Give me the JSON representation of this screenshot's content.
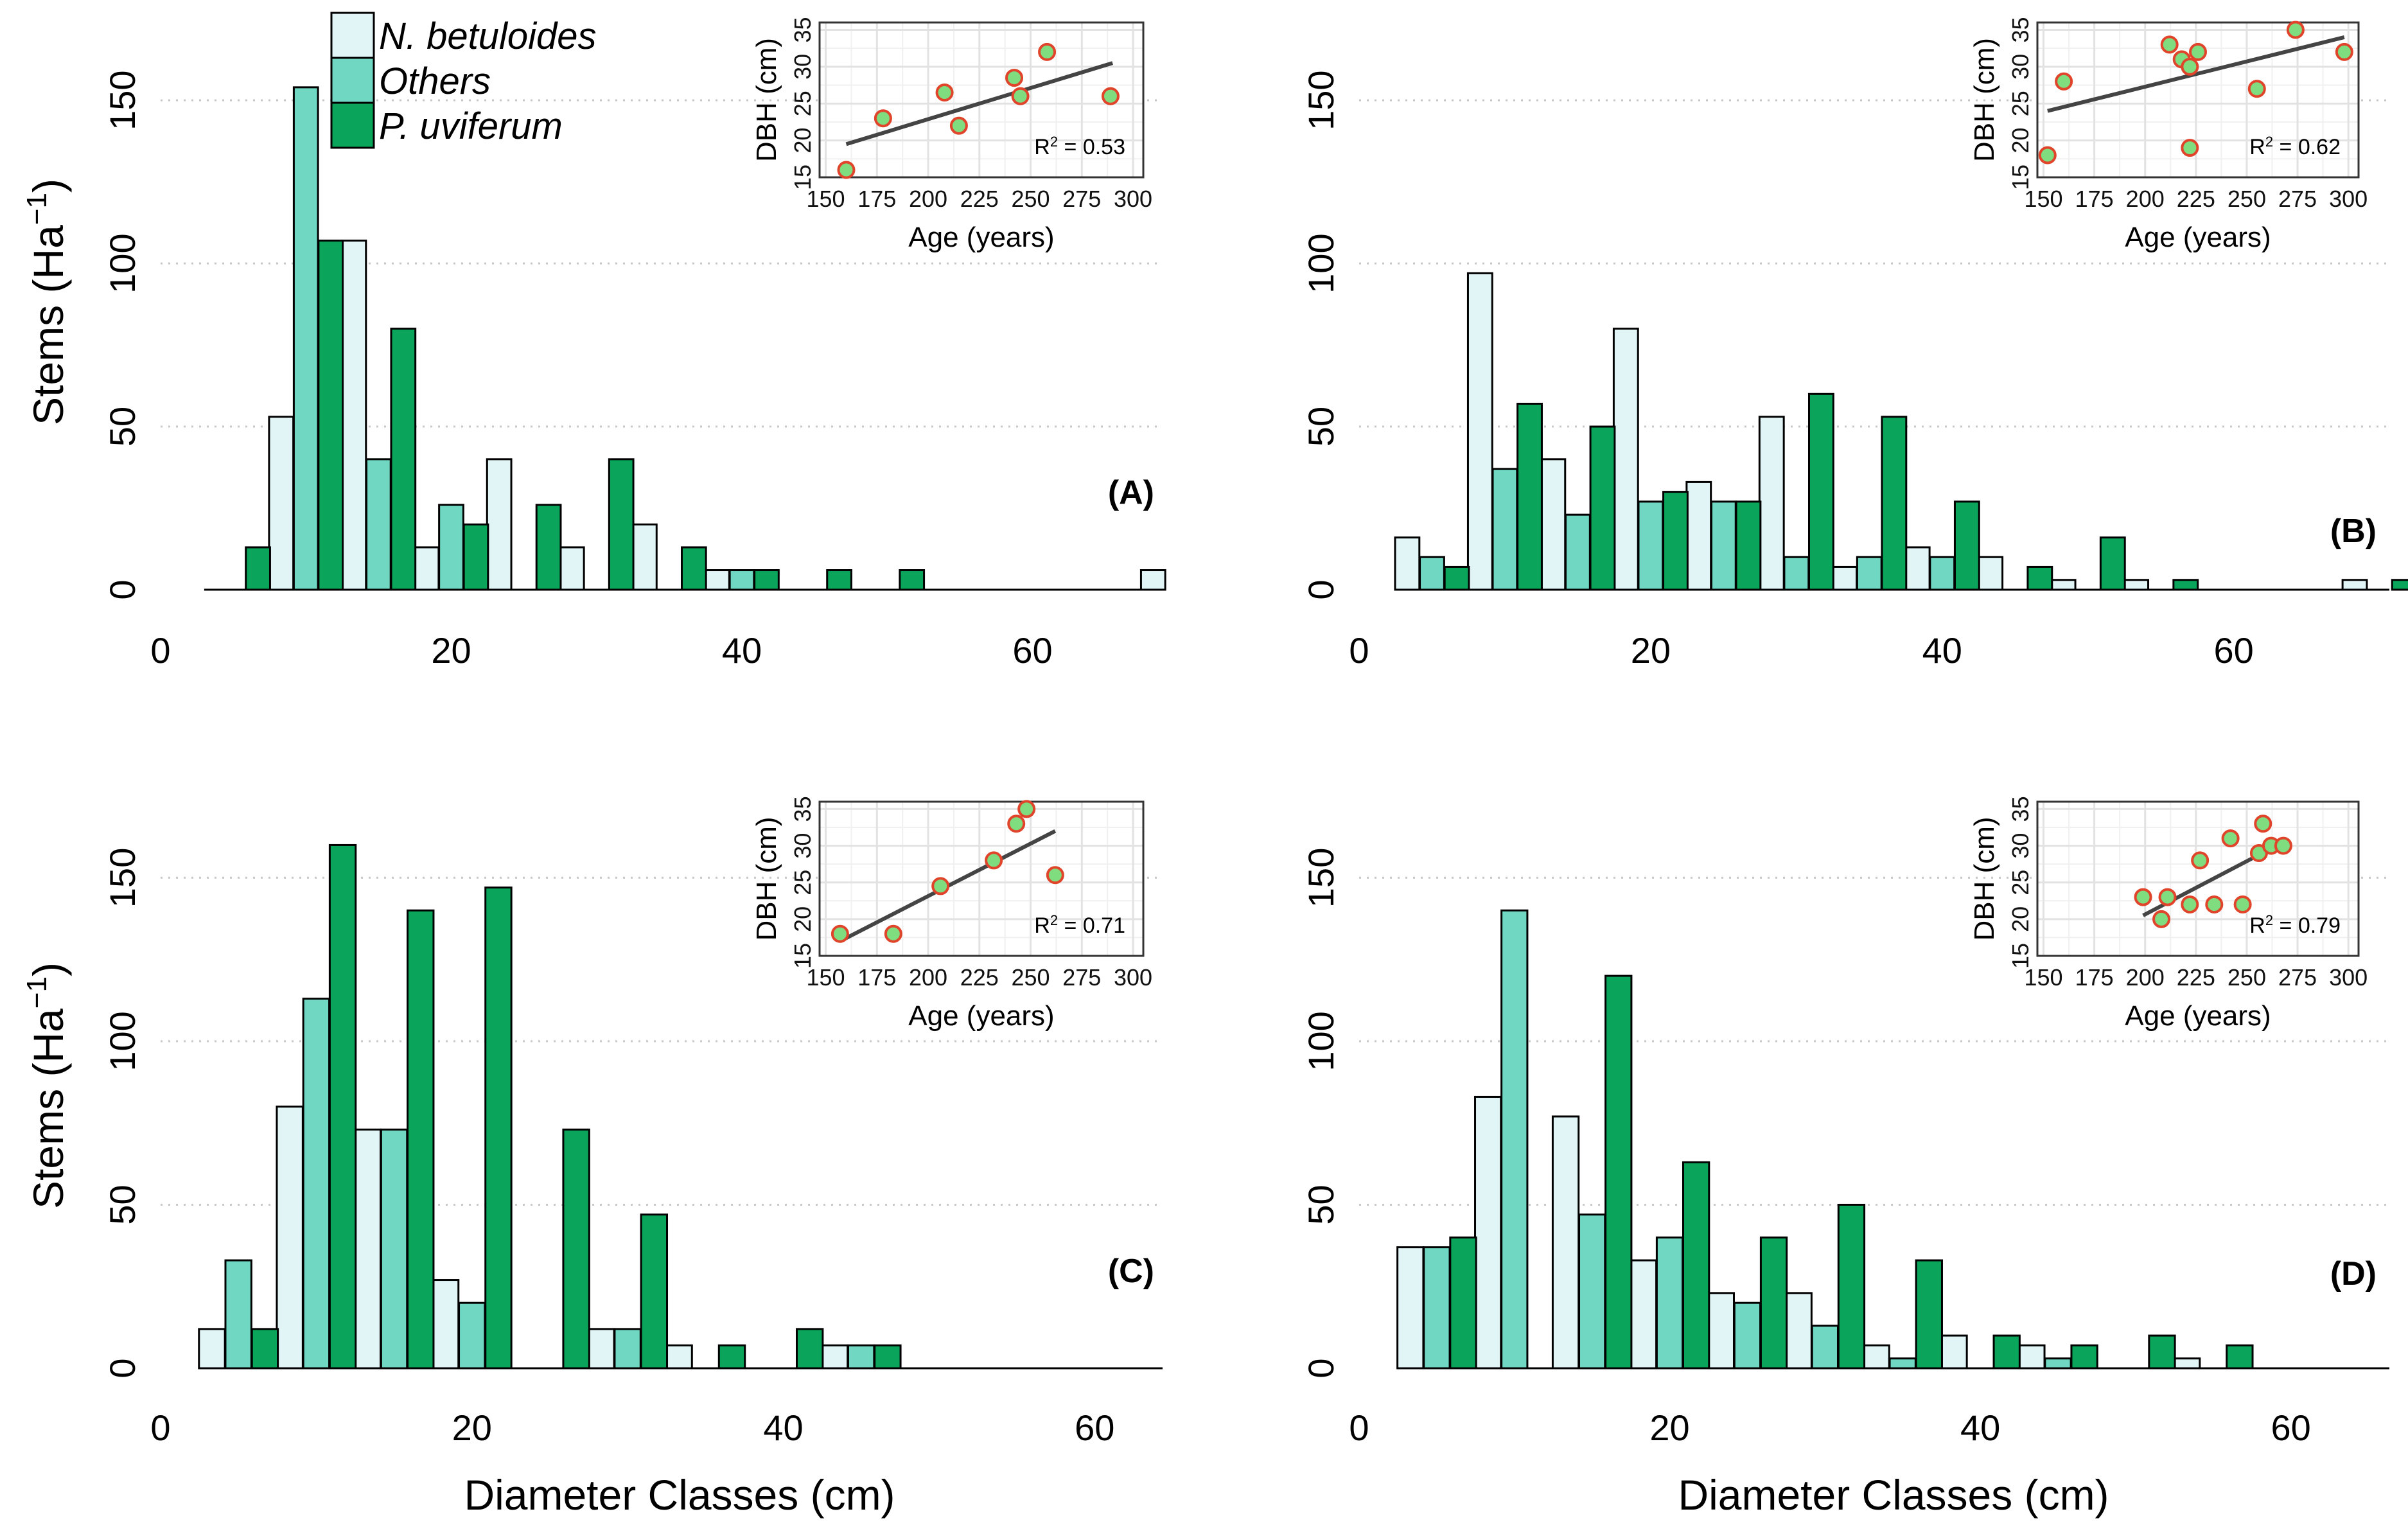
{
  "legend": {
    "items": [
      {
        "label": "N. betuloides",
        "color": "#e1f5f7"
      },
      {
        "label": "Others",
        "color": "#6fd7c2"
      },
      {
        "label": "P. uviferum",
        "color": "#0aa55a"
      }
    ]
  },
  "axes": {
    "ylabel_main": "Stems (Ha",
    "ylabel_sup": "−1",
    "ylabel_close": ")",
    "xlabel": "Diameter Classes (cm)"
  },
  "chart_data": [
    {
      "type": "bar",
      "panel": "A",
      "label": "(A)",
      "xlim": [
        0,
        72
      ],
      "ylim": [
        0,
        165
      ],
      "xticks": [
        "0",
        "20",
        "40",
        "60"
      ],
      "yticks": [
        "0",
        "50",
        "100",
        "150"
      ],
      "series": [
        {
          "name": "N. betuloides",
          "x": [
            8.3,
            13.3,
            18.3,
            23.3,
            28.3,
            33.3,
            38.3,
            68.3
          ],
          "values": [
            53,
            107,
            13,
            40,
            13,
            20,
            6,
            6
          ]
        },
        {
          "name": "Others",
          "x": [
            10,
            15,
            20,
            40
          ],
          "values": [
            154,
            40,
            26,
            6
          ]
        },
        {
          "name": "P. uviferum",
          "x": [
            6.7,
            11.7,
            16.7,
            21.7,
            26.7,
            31.7,
            36.7,
            41.7,
            46.7,
            51.7
          ],
          "values": [
            13,
            107,
            80,
            20,
            26,
            40,
            13,
            6,
            6,
            6
          ]
        }
      ],
      "inset": {
        "type": "scatter",
        "xlabel": "Age (years)",
        "ylabel": "DBH (cm)",
        "xlim": [
          147,
          305
        ],
        "ylim": [
          15,
          36
        ],
        "xticks": [
          "150",
          "175",
          "200",
          "225",
          "250",
          "275",
          "300"
        ],
        "yticks": [
          "15",
          "20",
          "25",
          "30",
          "35"
        ],
        "points": [
          [
            160,
            16
          ],
          [
            178,
            23
          ],
          [
            208,
            26.5
          ],
          [
            215,
            22
          ],
          [
            242,
            28.5
          ],
          [
            245,
            26
          ],
          [
            258,
            32
          ],
          [
            289,
            26
          ]
        ],
        "fit": [
          [
            160,
            19.5
          ],
          [
            290,
            30.5
          ]
        ],
        "r2_prefix": "R",
        "r2_sup": "2",
        "r2_value": " = 0.53"
      }
    },
    {
      "type": "bar",
      "panel": "B",
      "label": "(B)",
      "xlim": [
        0,
        72
      ],
      "ylim": [
        0,
        165
      ],
      "xticks": [
        "0",
        "20",
        "40",
        "60"
      ],
      "yticks": [
        "0",
        "50",
        "100",
        "150"
      ],
      "series": [
        {
          "name": "N. betuloides",
          "x": [
            3.3,
            8.3,
            13.3,
            18.3,
            23.3,
            28.3,
            33.3,
            38.3,
            43.3,
            48.3,
            53.3,
            68.3
          ],
          "values": [
            16,
            97,
            40,
            80,
            33,
            53,
            7,
            13,
            10,
            3,
            3,
            3
          ]
        },
        {
          "name": "Others",
          "x": [
            5,
            10,
            15,
            20,
            25,
            30,
            35,
            40
          ],
          "values": [
            10,
            37,
            23,
            27,
            27,
            10,
            10,
            10
          ]
        },
        {
          "name": "P. uviferum",
          "x": [
            6.7,
            11.7,
            16.7,
            21.7,
            26.7,
            31.7,
            36.7,
            41.7,
            46.7,
            51.7,
            56.7,
            71.7
          ],
          "values": [
            7,
            57,
            50,
            30,
            27,
            60,
            53,
            27,
            7,
            16,
            3,
            3
          ]
        }
      ],
      "inset": {
        "type": "scatter",
        "xlabel": "Age (years)",
        "ylabel": "DBH (cm)",
        "xlim": [
          147,
          305
        ],
        "ylim": [
          15,
          36
        ],
        "xticks": [
          "150",
          "175",
          "200",
          "225",
          "250",
          "275",
          "300"
        ],
        "yticks": [
          "15",
          "20",
          "25",
          "30",
          "35"
        ],
        "points": [
          [
            152,
            18
          ],
          [
            160,
            28
          ],
          [
            212,
            33
          ],
          [
            218,
            31
          ],
          [
            222,
            30
          ],
          [
            226,
            32
          ],
          [
            222,
            19
          ],
          [
            255,
            27
          ],
          [
            274,
            35
          ],
          [
            298,
            32
          ]
        ],
        "fit": [
          [
            152,
            24
          ],
          [
            298,
            34
          ]
        ],
        "r2_prefix": "R",
        "r2_sup": "2",
        "r2_value": " = 0.62"
      }
    },
    {
      "type": "bar",
      "panel": "C",
      "label": "(C)",
      "xlim": [
        0,
        67.5
      ],
      "ylim": [
        0,
        165
      ],
      "xticks": [
        "0",
        "20",
        "40",
        "60"
      ],
      "yticks": [
        "0",
        "50",
        "100",
        "150"
      ],
      "series": [
        {
          "name": "N. betuloides",
          "x": [
            3.3,
            8.3,
            13.3,
            18.3,
            28.3,
            33.3,
            43.3
          ],
          "values": [
            12,
            80,
            73,
            27,
            12,
            7,
            7
          ]
        },
        {
          "name": "Others",
          "x": [
            5,
            10,
            15,
            20,
            30,
            45
          ],
          "values": [
            33,
            113,
            73,
            20,
            12,
            7
          ]
        },
        {
          "name": "P. uviferum",
          "x": [
            6.7,
            11.7,
            16.7,
            21.7,
            26.7,
            31.7,
            36.7,
            41.7,
            46.7
          ],
          "values": [
            12,
            160,
            140,
            147,
            73,
            47,
            7,
            12,
            7
          ]
        }
      ],
      "inset": {
        "type": "scatter",
        "xlabel": "Age (years)",
        "ylabel": "DBH (cm)",
        "xlim": [
          147,
          305
        ],
        "ylim": [
          15,
          36
        ],
        "xticks": [
          "150",
          "175",
          "200",
          "225",
          "250",
          "275",
          "300"
        ],
        "yticks": [
          "15",
          "20",
          "25",
          "30",
          "35"
        ],
        "points": [
          [
            157,
            18
          ],
          [
            183,
            18
          ],
          [
            206,
            24.5
          ],
          [
            232,
            28
          ],
          [
            243,
            33
          ],
          [
            248,
            35
          ],
          [
            262,
            26
          ]
        ],
        "fit": [
          [
            157,
            17
          ],
          [
            262,
            32
          ]
        ],
        "r2_prefix": "R",
        "r2_sup": "2",
        "r2_value": " = 0.71"
      }
    },
    {
      "type": "bar",
      "panel": "D",
      "label": "(D)",
      "xlim": [
        0,
        67.5
      ],
      "ylim": [
        0,
        165
      ],
      "xticks": [
        "0",
        "20",
        "40",
        "60"
      ],
      "yticks": [
        "0",
        "50",
        "100",
        "150"
      ],
      "series": [
        {
          "name": "N. betuloides",
          "x": [
            3.3,
            8.3,
            13.3,
            18.3,
            23.3,
            28.3,
            33.3,
            38.3,
            43.3,
            53.3
          ],
          "values": [
            37,
            83,
            77,
            33,
            23,
            23,
            7,
            10,
            7,
            3
          ]
        },
        {
          "name": "Others",
          "x": [
            5,
            10,
            15,
            20,
            25,
            30,
            35,
            45
          ],
          "values": [
            37,
            140,
            47,
            40,
            20,
            13,
            3,
            3
          ]
        },
        {
          "name": "P. uviferum",
          "x": [
            6.7,
            16.7,
            21.7,
            26.7,
            31.7,
            36.7,
            41.7,
            46.7,
            51.7,
            56.7
          ],
          "values": [
            40,
            120,
            63,
            40,
            50,
            33,
            10,
            7,
            10,
            7
          ]
        }
      ],
      "inset": {
        "type": "scatter",
        "xlabel": "Age (years)",
        "ylabel": "DBH (cm)",
        "xlim": [
          147,
          305
        ],
        "ylim": [
          15,
          36
        ],
        "xticks": [
          "150",
          "175",
          "200",
          "225",
          "250",
          "275",
          "300"
        ],
        "yticks": [
          "15",
          "20",
          "25",
          "30",
          "35"
        ],
        "points": [
          [
            199,
            23
          ],
          [
            208,
            20
          ],
          [
            211,
            23
          ],
          [
            222,
            22
          ],
          [
            227,
            28
          ],
          [
            234,
            22
          ],
          [
            242,
            31
          ],
          [
            248,
            22
          ],
          [
            256,
            29
          ],
          [
            258,
            33
          ],
          [
            262,
            30
          ],
          [
            268,
            30
          ]
        ],
        "fit": [
          [
            199,
            20.5
          ],
          [
            268,
            30.5
          ]
        ],
        "r2_prefix": "R",
        "r2_sup": "2",
        "r2_value": " = 0.79"
      }
    }
  ]
}
